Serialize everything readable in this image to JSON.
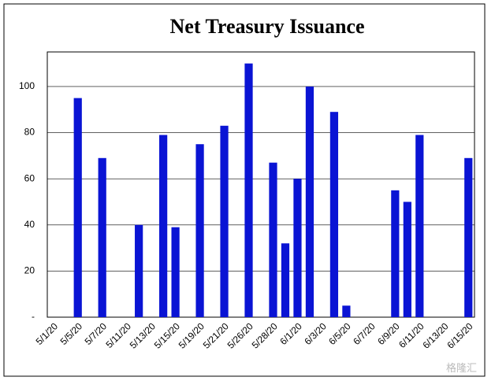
{
  "chart_data": {
    "type": "bar",
    "title": "Net Treasury Issuance",
    "categories": [
      "5/1/20",
      null,
      "5/5/20",
      null,
      "5/7/20",
      null,
      "5/11/20",
      null,
      "5/13/20",
      null,
      "5/15/20",
      null,
      "5/19/20",
      null,
      "5/21/20",
      null,
      "5/26/20",
      null,
      "5/28/20",
      null,
      "6/1/20",
      null,
      "6/3/20",
      null,
      "6/5/20",
      null,
      "6/7/20",
      null,
      "6/9/20",
      null,
      "6/11/20",
      null,
      "6/13/20",
      null,
      "6/15/20"
    ],
    "values": [
      0,
      0,
      95,
      0,
      69,
      0,
      0,
      40,
      0,
      79,
      39,
      0,
      75,
      0,
      83,
      0,
      110,
      0,
      67,
      32,
      60,
      100,
      0,
      89,
      5,
      0,
      0,
      0,
      55,
      50,
      79,
      0,
      0,
      0,
      69
    ],
    "color": "#0a14d4",
    "ylim": [
      0,
      115
    ],
    "yticks": [
      {
        "value": 0,
        "label": "-"
      },
      20,
      40,
      60,
      80,
      100
    ],
    "grid": true,
    "watermark": "格隆汇"
  }
}
